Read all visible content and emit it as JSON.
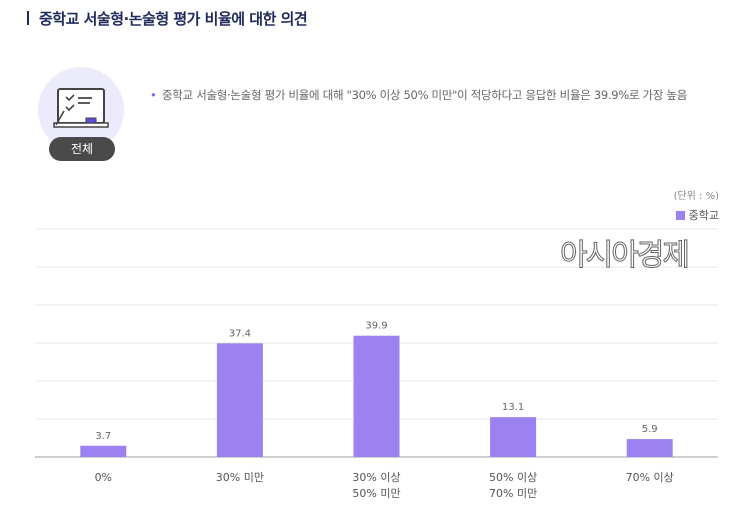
{
  "header": {
    "title": "중학교 서술형·논술형 평가 비율에 대한 의견"
  },
  "summary": {
    "badge": "전체",
    "icon": "whiteboard-checklist-icon",
    "bullet": "•",
    "text": "중학교 서술형·논술형 평가 비율에 대해 \"30% 이상 50% 미만\"이 적당하다고 응답한 비율은 39.9%로 가장 높음"
  },
  "watermark": "아시아경제",
  "chart_data": {
    "type": "bar",
    "unit_label": "(단위 : %)",
    "categories": [
      "0%",
      "30% 미만",
      "30% 이상\n50% 미만",
      "50% 이상\n70% 미만",
      "70% 이상"
    ],
    "series": [
      {
        "name": "중학교",
        "values": [
          3.7,
          37.4,
          39.9,
          13.1,
          5.9
        ],
        "color": "#9b82f0"
      }
    ],
    "ylim": [
      0,
      75
    ],
    "grid": true,
    "legend": "top-right"
  }
}
